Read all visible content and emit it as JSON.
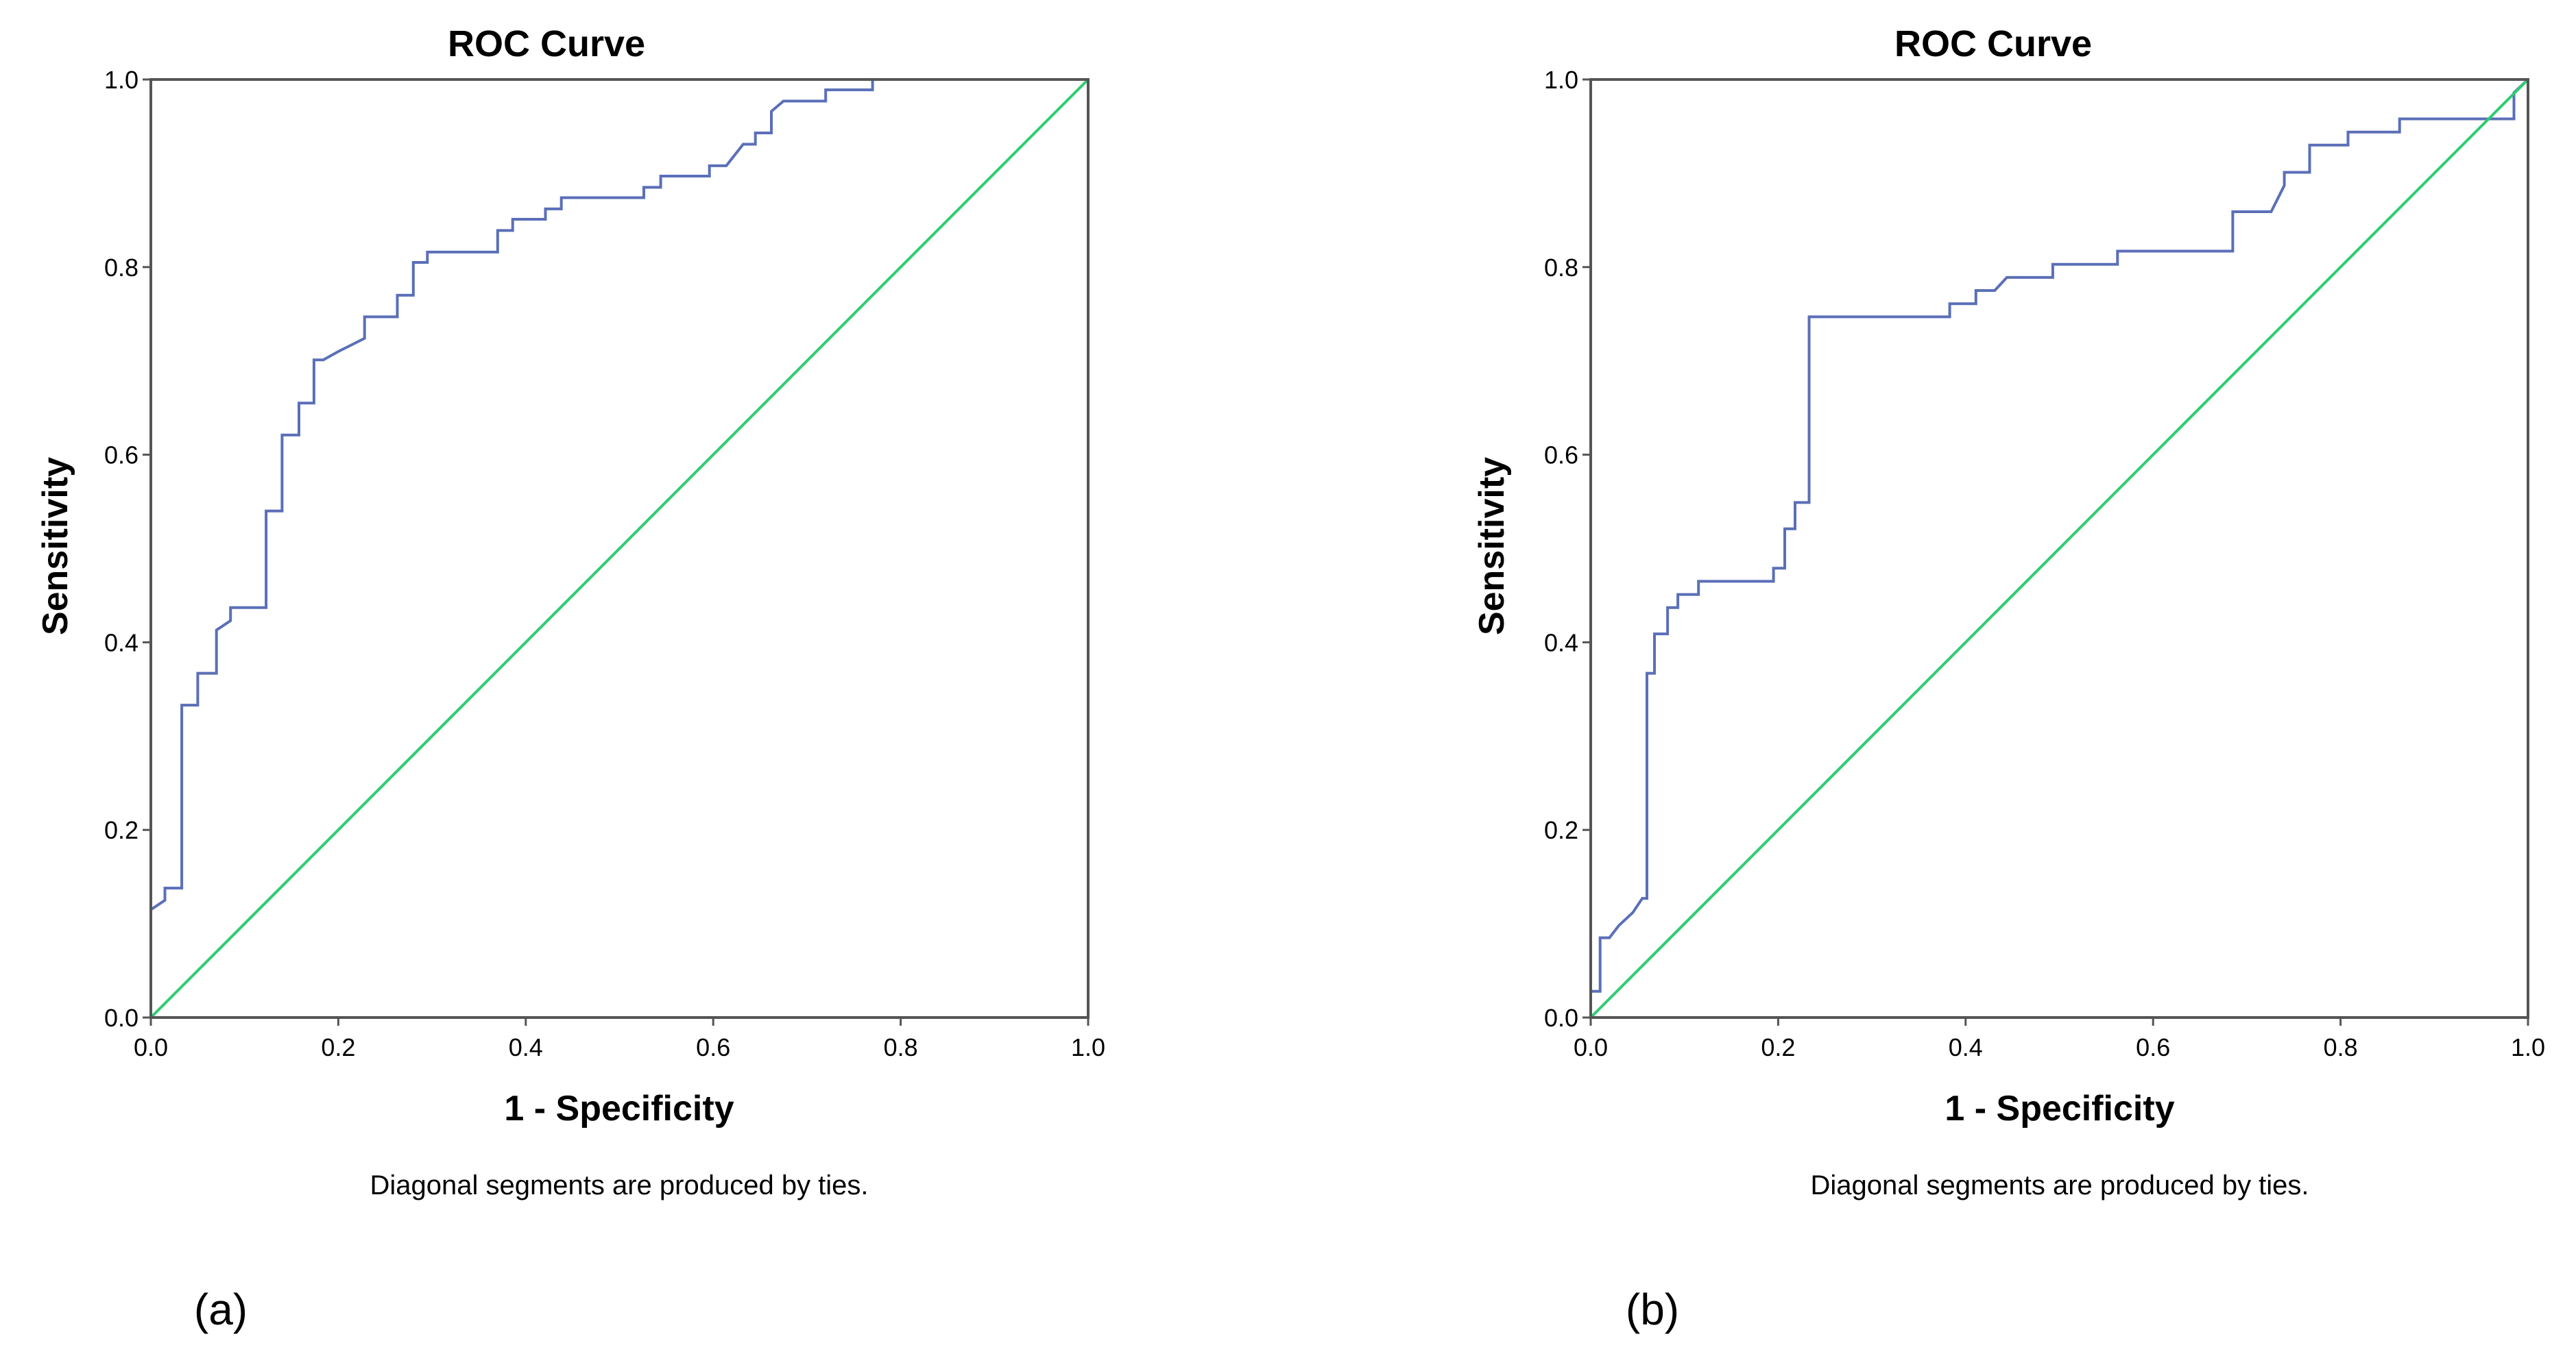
{
  "chart_data": [
    {
      "type": "line",
      "panel_label": "(a)",
      "title": "ROC Curve",
      "xlabel": "1 - Specificity",
      "ylabel": "Sensitivity",
      "xlim": [
        0,
        1
      ],
      "ylim": [
        0,
        1
      ],
      "xticks": [
        "0.0",
        "0.2",
        "0.4",
        "0.6",
        "0.8",
        "1.0"
      ],
      "yticks": [
        "0.0",
        "0.2",
        "0.4",
        "0.6",
        "0.8",
        "1.0"
      ],
      "footnote": "Diagonal segments are produced by ties.",
      "colors": {
        "roc": "#5b6fb8",
        "reference": "#2ecc71"
      },
      "series": [
        {
          "name": "ROC",
          "x": [
            0.0,
            0.0,
            0.015,
            0.015,
            0.033,
            0.033,
            0.05,
            0.05,
            0.07,
            0.07,
            0.085,
            0.085,
            0.123,
            0.123,
            0.14,
            0.14,
            0.158,
            0.158,
            0.174,
            0.174,
            0.184,
            0.2,
            0.228,
            0.228,
            0.263,
            0.263,
            0.28,
            0.28,
            0.295,
            0.295,
            0.37,
            0.37,
            0.386,
            0.386,
            0.421,
            0.421,
            0.438,
            0.438,
            0.526,
            0.526,
            0.544,
            0.544,
            0.561,
            0.561,
            0.596,
            0.596,
            0.614,
            0.614,
            0.632,
            0.645,
            0.645,
            0.662,
            0.662,
            0.675,
            0.69,
            0.72,
            0.72,
            0.77,
            0.77,
            1.0
          ],
          "y": [
            0.0,
            0.115,
            0.125,
            0.138,
            0.138,
            0.333,
            0.333,
            0.367,
            0.367,
            0.413,
            0.423,
            0.437,
            0.437,
            0.54,
            0.54,
            0.621,
            0.621,
            0.655,
            0.655,
            0.701,
            0.701,
            0.71,
            0.724,
            0.747,
            0.747,
            0.77,
            0.77,
            0.805,
            0.805,
            0.816,
            0.816,
            0.839,
            0.839,
            0.851,
            0.851,
            0.862,
            0.862,
            0.874,
            0.874,
            0.885,
            0.885,
            0.897,
            0.897,
            0.897,
            0.897,
            0.908,
            0.908,
            0.908,
            0.931,
            0.931,
            0.943,
            0.943,
            0.966,
            0.977,
            0.977,
            0.977,
            0.989,
            0.989,
            1.0,
            1.0
          ]
        },
        {
          "name": "Reference line",
          "x": [
            0,
            1
          ],
          "y": [
            0,
            1
          ]
        }
      ]
    },
    {
      "type": "line",
      "panel_label": "(b)",
      "title": "ROC Curve",
      "xlabel": "1 - Specificity",
      "ylabel": "Sensitivity",
      "xlim": [
        0,
        1
      ],
      "ylim": [
        0,
        1
      ],
      "xticks": [
        "0.0",
        "0.2",
        "0.4",
        "0.6",
        "0.8",
        "1.0"
      ],
      "yticks": [
        "0.0",
        "0.2",
        "0.4",
        "0.6",
        "0.8",
        "1.0"
      ],
      "footnote": "Diagonal segments are produced by ties.",
      "colors": {
        "roc": "#5b6fb8",
        "reference": "#2ecc71"
      },
      "series": [
        {
          "name": "ROC",
          "x": [
            0.0,
            0.0,
            0.01,
            0.01,
            0.02,
            0.03,
            0.03,
            0.045,
            0.055,
            0.06,
            0.06,
            0.068,
            0.068,
            0.082,
            0.082,
            0.093,
            0.093,
            0.103,
            0.103,
            0.115,
            0.115,
            0.133,
            0.133,
            0.195,
            0.195,
            0.207,
            0.207,
            0.218,
            0.218,
            0.233,
            0.233,
            0.383,
            0.383,
            0.411,
            0.411,
            0.431,
            0.444,
            0.444,
            0.493,
            0.493,
            0.562,
            0.562,
            0.685,
            0.685,
            0.726,
            0.74,
            0.74,
            0.767,
            0.767,
            0.808,
            0.808,
            0.863,
            0.863,
            0.985,
            0.985,
            1.0
          ],
          "y": [
            0.0,
            0.028,
            0.028,
            0.085,
            0.085,
            0.098,
            0.098,
            0.112,
            0.127,
            0.127,
            0.367,
            0.367,
            0.409,
            0.409,
            0.437,
            0.437,
            0.451,
            0.451,
            0.451,
            0.451,
            0.465,
            0.465,
            0.465,
            0.465,
            0.479,
            0.479,
            0.521,
            0.521,
            0.549,
            0.549,
            0.747,
            0.747,
            0.761,
            0.761,
            0.775,
            0.775,
            0.789,
            0.789,
            0.789,
            0.803,
            0.803,
            0.817,
            0.817,
            0.859,
            0.859,
            0.887,
            0.901,
            0.901,
            0.93,
            0.93,
            0.944,
            0.944,
            0.958,
            0.958,
            0.986,
            1.0
          ]
        },
        {
          "name": "Reference line",
          "x": [
            0,
            1
          ],
          "y": [
            0,
            1
          ]
        }
      ]
    }
  ]
}
